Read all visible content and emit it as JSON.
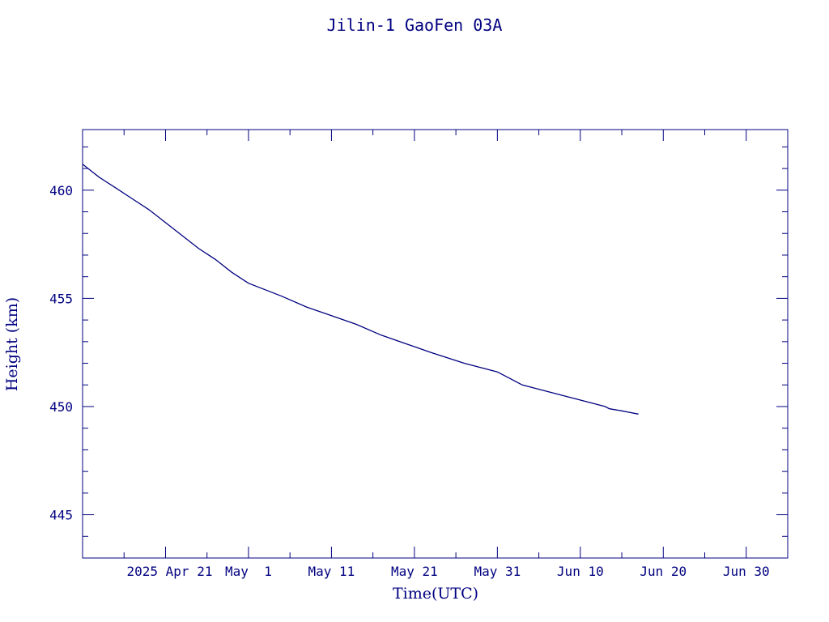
{
  "chart_data": {
    "type": "line",
    "title": "Jilin-1 GaoFen 03A",
    "xlabel": "Time(UTC)",
    "ylabel": "Height (km)",
    "x_is_date": true,
    "xlim": [
      "2025-04-11",
      "2025-07-05"
    ],
    "ylim": [
      443.0,
      462.8
    ],
    "x_ticks": [
      {
        "value": "2025-04-21",
        "label": "2025 Apr 21"
      },
      {
        "value": "2025-05-01",
        "label": "May  1"
      },
      {
        "value": "2025-05-11",
        "label": "May 11"
      },
      {
        "value": "2025-05-21",
        "label": "May 21"
      },
      {
        "value": "2025-05-31",
        "label": "May 31"
      },
      {
        "value": "2025-06-10",
        "label": "Jun 10"
      },
      {
        "value": "2025-06-20",
        "label": "Jun 20"
      },
      {
        "value": "2025-06-30",
        "label": "Jun 30"
      }
    ],
    "y_ticks": [
      445,
      450,
      455,
      460
    ],
    "grid": false,
    "colors": {
      "line": "#000080",
      "frame": "#000080",
      "text": "#000080",
      "background": "#ffffff"
    },
    "series": [
      {
        "x": [
          "2025-04-11",
          "2025-04-12",
          "2025-04-13",
          "2025-04-15",
          "2025-04-17",
          "2025-04-19",
          "2025-04-21",
          "2025-04-23",
          "2025-04-25",
          "2025-04-27",
          "2025-04-29",
          "2025-05-01",
          "2025-05-03",
          "2025-05-05",
          "2025-05-08",
          "2025-05-11",
          "2025-05-14",
          "2025-05-17",
          "2025-05-20",
          "2025-05-23",
          "2025-05-27",
          "2025-05-31",
          "2025-06-01",
          "2025-06-01T12",
          "2025-06-03",
          "2025-06-05",
          "2025-06-08",
          "2025-06-11",
          "2025-06-13",
          "2025-06-13T12",
          "2025-06-15",
          "2025-06-17"
        ],
        "y": [
          461.2,
          460.9,
          460.6,
          460.1,
          459.6,
          459.1,
          458.5,
          457.9,
          457.3,
          456.8,
          456.2,
          455.7,
          455.4,
          455.1,
          454.6,
          454.2,
          453.8,
          453.3,
          452.9,
          452.5,
          452.0,
          451.6,
          451.4,
          451.3,
          451.0,
          450.8,
          450.5,
          450.2,
          450.0,
          449.9,
          449.8,
          449.65
        ]
      }
    ]
  }
}
